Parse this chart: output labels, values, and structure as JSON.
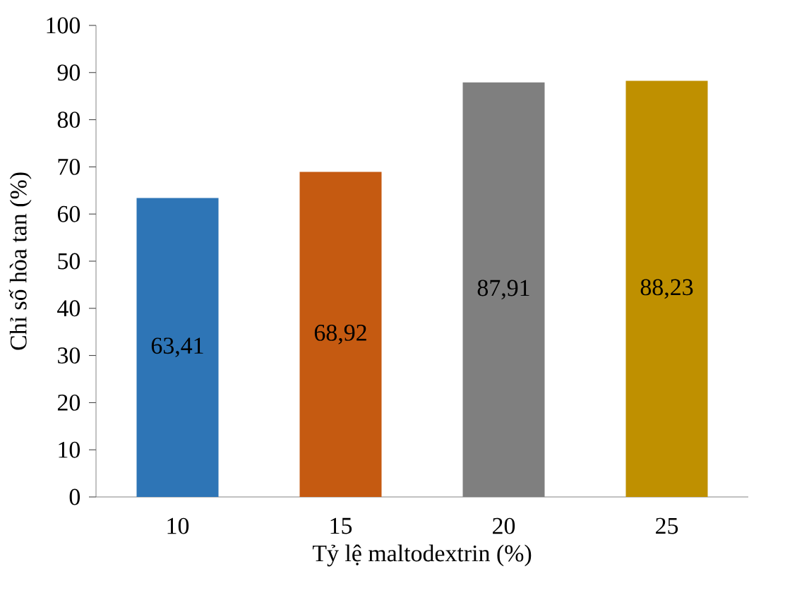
{
  "chart_data": {
    "type": "bar",
    "xlabel": "Tỷ lệ maltodextrin (%)",
    "ylabel": "Chỉ số hòa tan (%)",
    "categories": [
      "10",
      "15",
      "20",
      "25"
    ],
    "values": [
      63.41,
      68.92,
      87.91,
      88.23
    ],
    "colors": [
      "#2e75b6",
      "#c55a11",
      "#7f7f7f",
      "#bf9000"
    ],
    "value_labels": [
      "63,41",
      "68,92",
      "87,91",
      "88,23"
    ],
    "ylim": [
      0,
      100
    ],
    "yticks": [
      0,
      10,
      20,
      30,
      40,
      50,
      60,
      70,
      80,
      90,
      100
    ],
    "grid": false
  }
}
